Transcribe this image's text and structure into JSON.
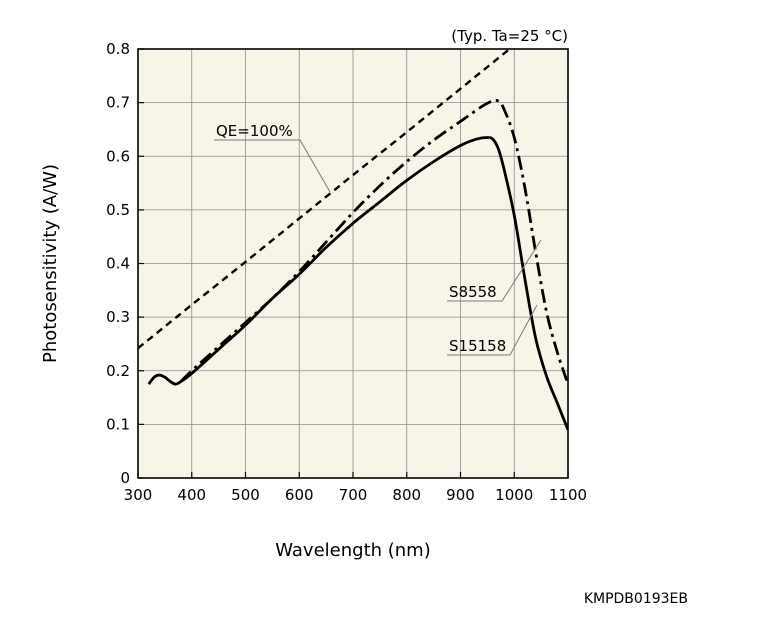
{
  "chart_data": {
    "type": "line",
    "title": "",
    "condition_note": "(Typ. Ta=25 °C)",
    "xlabel": "Wavelength (nm)",
    "ylabel": "Photosensitivity (A/W)",
    "xlim": [
      300,
      1100
    ],
    "ylim": [
      0,
      0.8
    ],
    "xticks": [
      300,
      400,
      500,
      600,
      700,
      800,
      900,
      1000,
      1100
    ],
    "yticks": [
      0,
      0.1,
      0.2,
      0.3,
      0.4,
      0.5,
      0.6,
      0.7,
      0.8
    ],
    "ytick_labels": [
      "0",
      "0.1",
      "0.2",
      "0.3",
      "0.4",
      "0.5",
      "0.6",
      "0.7",
      "0.8"
    ],
    "grid": true,
    "plot_background": "#f7f4e8",
    "series": [
      {
        "name": "QE=100%",
        "style": "dashed",
        "x": [
          300,
          400,
          500,
          600,
          700,
          800,
          900,
          1000,
          1010
        ],
        "y": [
          0.242,
          0.323,
          0.403,
          0.484,
          0.565,
          0.645,
          0.726,
          0.807,
          0.815
        ]
      },
      {
        "name": "S8558",
        "style": "dash-dot",
        "x": [
          380,
          400,
          450,
          500,
          550,
          600,
          650,
          700,
          750,
          800,
          850,
          900,
          940,
          960,
          970,
          980,
          1000,
          1020,
          1040,
          1060,
          1080,
          1100
        ],
        "y": [
          0.18,
          0.2,
          0.245,
          0.29,
          0.335,
          0.385,
          0.44,
          0.495,
          0.545,
          0.59,
          0.63,
          0.665,
          0.693,
          0.703,
          0.703,
          0.69,
          0.635,
          0.54,
          0.42,
          0.31,
          0.235,
          0.175
        ]
      },
      {
        "name": "S15158",
        "style": "solid",
        "x": [
          320,
          330,
          340,
          350,
          360,
          370,
          380,
          400,
          450,
          500,
          550,
          600,
          650,
          700,
          750,
          800,
          850,
          900,
          930,
          950,
          960,
          970,
          980,
          1000,
          1020,
          1040,
          1060,
          1080,
          1100
        ],
        "y": [
          0.175,
          0.188,
          0.192,
          0.188,
          0.18,
          0.175,
          0.18,
          0.195,
          0.24,
          0.285,
          0.335,
          0.38,
          0.43,
          0.475,
          0.515,
          0.555,
          0.59,
          0.62,
          0.632,
          0.635,
          0.632,
          0.615,
          0.58,
          0.49,
          0.37,
          0.26,
          0.19,
          0.14,
          0.09
        ]
      }
    ],
    "annotations": [
      {
        "text": "QE=100%",
        "points_to_series": "QE=100%"
      },
      {
        "text": "S8558",
        "points_to_series": "S8558"
      },
      {
        "text": "S15158",
        "points_to_series": "S15158"
      }
    ],
    "figure_code": "KMPDB0193EB"
  }
}
